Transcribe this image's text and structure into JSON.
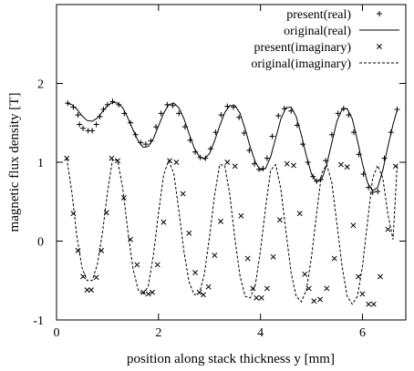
{
  "chart_data": {
    "type": "scatter",
    "xlabel": "position along stack thickness y [mm]",
    "ylabel": "magnetic flux density [T]",
    "xlim": [
      0,
      6.85
    ],
    "ylim": [
      -1,
      3
    ],
    "x_ticks": [
      0,
      2,
      4,
      6
    ],
    "y_ticks": [
      -1,
      0,
      1,
      2
    ],
    "x_tick_labels": [
      "0",
      "2",
      "4",
      "6"
    ],
    "y_tick_labels": [
      "-1",
      "0",
      "1",
      "2"
    ],
    "grid": false,
    "legend_position": "top-right",
    "series": [
      {
        "name": "present(real)",
        "style": "points-plus",
        "color": "#000000",
        "x": [
          0.22,
          0.33,
          0.42,
          0.45,
          0.52,
          0.62,
          0.7,
          0.78,
          0.85,
          0.92,
          1.0,
          1.1,
          1.22,
          1.33,
          1.45,
          1.55,
          1.65,
          1.75,
          1.85,
          1.95,
          2.05,
          2.17,
          2.28,
          2.4,
          2.52,
          2.62,
          2.72,
          2.82,
          2.92,
          3.02,
          3.12,
          3.23,
          3.35,
          3.47,
          3.58,
          3.68,
          3.78,
          3.88,
          3.97,
          4.05,
          4.13,
          4.23,
          4.35,
          4.47,
          4.6,
          4.72,
          4.83,
          4.93,
          5.03,
          5.1,
          5.18,
          5.28,
          5.4,
          5.52,
          5.63,
          5.73,
          5.83,
          5.93,
          6.02,
          6.12,
          6.2,
          6.3,
          6.43,
          6.56,
          6.68
        ],
        "y": [
          1.75,
          1.7,
          1.6,
          1.48,
          1.43,
          1.4,
          1.4,
          1.48,
          1.58,
          1.67,
          1.73,
          1.77,
          1.73,
          1.62,
          1.5,
          1.35,
          1.25,
          1.23,
          1.27,
          1.45,
          1.62,
          1.73,
          1.72,
          1.62,
          1.45,
          1.28,
          1.13,
          1.06,
          1.05,
          1.17,
          1.38,
          1.6,
          1.71,
          1.7,
          1.57,
          1.37,
          1.15,
          0.98,
          0.91,
          0.92,
          1.05,
          1.33,
          1.59,
          1.68,
          1.65,
          1.47,
          1.23,
          1.0,
          0.82,
          0.76,
          0.78,
          1.02,
          1.35,
          1.62,
          1.68,
          1.6,
          1.38,
          1.1,
          0.85,
          0.68,
          0.62,
          0.63,
          1.05,
          1.38,
          1.67
        ]
      },
      {
        "name": "original(real)",
        "style": "solid-line",
        "color": "#000000",
        "x": [
          0.2,
          0.3,
          0.4,
          0.5,
          0.6,
          0.7,
          0.8,
          0.9,
          1.0,
          1.1,
          1.2,
          1.3,
          1.4,
          1.5,
          1.6,
          1.7,
          1.8,
          1.9,
          2.0,
          2.1,
          2.2,
          2.3,
          2.4,
          2.5,
          2.6,
          2.7,
          2.8,
          2.9,
          3.0,
          3.1,
          3.2,
          3.3,
          3.4,
          3.5,
          3.6,
          3.7,
          3.8,
          3.9,
          4.0,
          4.1,
          4.2,
          4.3,
          4.4,
          4.5,
          4.6,
          4.7,
          4.8,
          4.9,
          5.0,
          5.1,
          5.2,
          5.3,
          5.4,
          5.5,
          5.6,
          5.7,
          5.8,
          5.9,
          6.0,
          6.1,
          6.2,
          6.3,
          6.4,
          6.5,
          6.6,
          6.68
        ],
        "y": [
          1.75,
          1.73,
          1.67,
          1.59,
          1.53,
          1.52,
          1.56,
          1.64,
          1.72,
          1.76,
          1.75,
          1.69,
          1.56,
          1.41,
          1.27,
          1.19,
          1.2,
          1.3,
          1.46,
          1.62,
          1.73,
          1.75,
          1.69,
          1.55,
          1.36,
          1.18,
          1.07,
          1.04,
          1.11,
          1.27,
          1.46,
          1.63,
          1.72,
          1.72,
          1.62,
          1.42,
          1.19,
          1.0,
          0.9,
          0.92,
          1.07,
          1.31,
          1.55,
          1.69,
          1.7,
          1.58,
          1.35,
          1.08,
          0.85,
          0.75,
          0.78,
          0.97,
          1.25,
          1.52,
          1.67,
          1.68,
          1.55,
          1.28,
          0.98,
          0.74,
          0.64,
          0.68,
          0.9,
          1.2,
          1.48,
          1.66
        ]
      },
      {
        "name": "present(imaginary)",
        "style": "points-x",
        "color": "#000000",
        "x": [
          0.2,
          0.33,
          0.42,
          0.52,
          0.6,
          0.68,
          0.78,
          0.88,
          0.98,
          1.08,
          1.2,
          1.32,
          1.45,
          1.58,
          1.7,
          1.8,
          1.88,
          1.98,
          2.1,
          2.22,
          2.35,
          2.48,
          2.6,
          2.72,
          2.8,
          2.88,
          2.98,
          3.1,
          3.22,
          3.35,
          3.5,
          3.62,
          3.75,
          3.85,
          3.92,
          4.02,
          4.13,
          4.25,
          4.38,
          4.52,
          4.65,
          4.77,
          4.87,
          4.95,
          5.05,
          5.17,
          5.3,
          5.45,
          5.58,
          5.7,
          5.82,
          5.92,
          6.0,
          6.12,
          6.22,
          6.35,
          6.5,
          6.65
        ],
        "y": [
          1.05,
          0.35,
          -0.12,
          -0.45,
          -0.62,
          -0.62,
          -0.46,
          -0.12,
          0.36,
          1.05,
          1.02,
          0.55,
          0.02,
          -0.3,
          -0.65,
          -0.67,
          -0.65,
          -0.3,
          0.24,
          1.02,
          1.0,
          0.6,
          0.1,
          -0.4,
          -0.65,
          -0.68,
          -0.58,
          -0.18,
          0.25,
          1.0,
          0.95,
          0.32,
          -0.22,
          -0.6,
          -0.72,
          -0.72,
          -0.6,
          -0.2,
          0.27,
          0.98,
          0.96,
          0.35,
          -0.42,
          -0.6,
          -0.76,
          -0.74,
          -0.6,
          -0.22,
          0.97,
          0.94,
          0.2,
          -0.45,
          -0.67,
          -0.8,
          -0.8,
          -0.45,
          0.15,
          0.95
        ]
      },
      {
        "name": "original(imaginary)",
        "style": "dashed-line",
        "color": "#000000",
        "x": [
          0.2,
          0.3,
          0.4,
          0.5,
          0.6,
          0.7,
          0.8,
          0.9,
          1.0,
          1.1,
          1.2,
          1.3,
          1.4,
          1.5,
          1.6,
          1.7,
          1.8,
          1.9,
          2.0,
          2.1,
          2.2,
          2.3,
          2.4,
          2.5,
          2.6,
          2.7,
          2.8,
          2.9,
          3.0,
          3.1,
          3.2,
          3.3,
          3.4,
          3.5,
          3.6,
          3.7,
          3.8,
          3.9,
          4.0,
          4.1,
          4.2,
          4.3,
          4.4,
          4.5,
          4.6,
          4.7,
          4.8,
          4.9,
          5.0,
          5.1,
          5.2,
          5.3,
          5.4,
          5.5,
          5.6,
          5.7,
          5.8,
          5.9,
          6.0,
          6.1,
          6.2,
          6.3,
          6.4,
          6.5,
          6.6,
          6.68
        ],
        "y": [
          1.05,
          0.62,
          0.05,
          -0.34,
          -0.5,
          -0.5,
          -0.3,
          0.1,
          0.62,
          1.04,
          1.02,
          0.66,
          0.12,
          -0.35,
          -0.62,
          -0.68,
          -0.57,
          -0.18,
          0.35,
          0.84,
          1.02,
          0.86,
          0.38,
          -0.14,
          -0.52,
          -0.68,
          -0.66,
          -0.42,
          0.05,
          0.58,
          0.97,
          0.96,
          0.58,
          0.02,
          -0.45,
          -0.7,
          -0.72,
          -0.55,
          -0.12,
          0.42,
          0.9,
          0.97,
          0.66,
          0.12,
          -0.4,
          -0.7,
          -0.77,
          -0.62,
          -0.2,
          0.35,
          0.86,
          0.97,
          0.74,
          0.22,
          -0.32,
          -0.7,
          -0.8,
          -0.7,
          -0.32,
          0.25,
          0.8,
          0.96,
          0.8,
          0.34,
          0.02,
          0.95
        ]
      }
    ]
  }
}
